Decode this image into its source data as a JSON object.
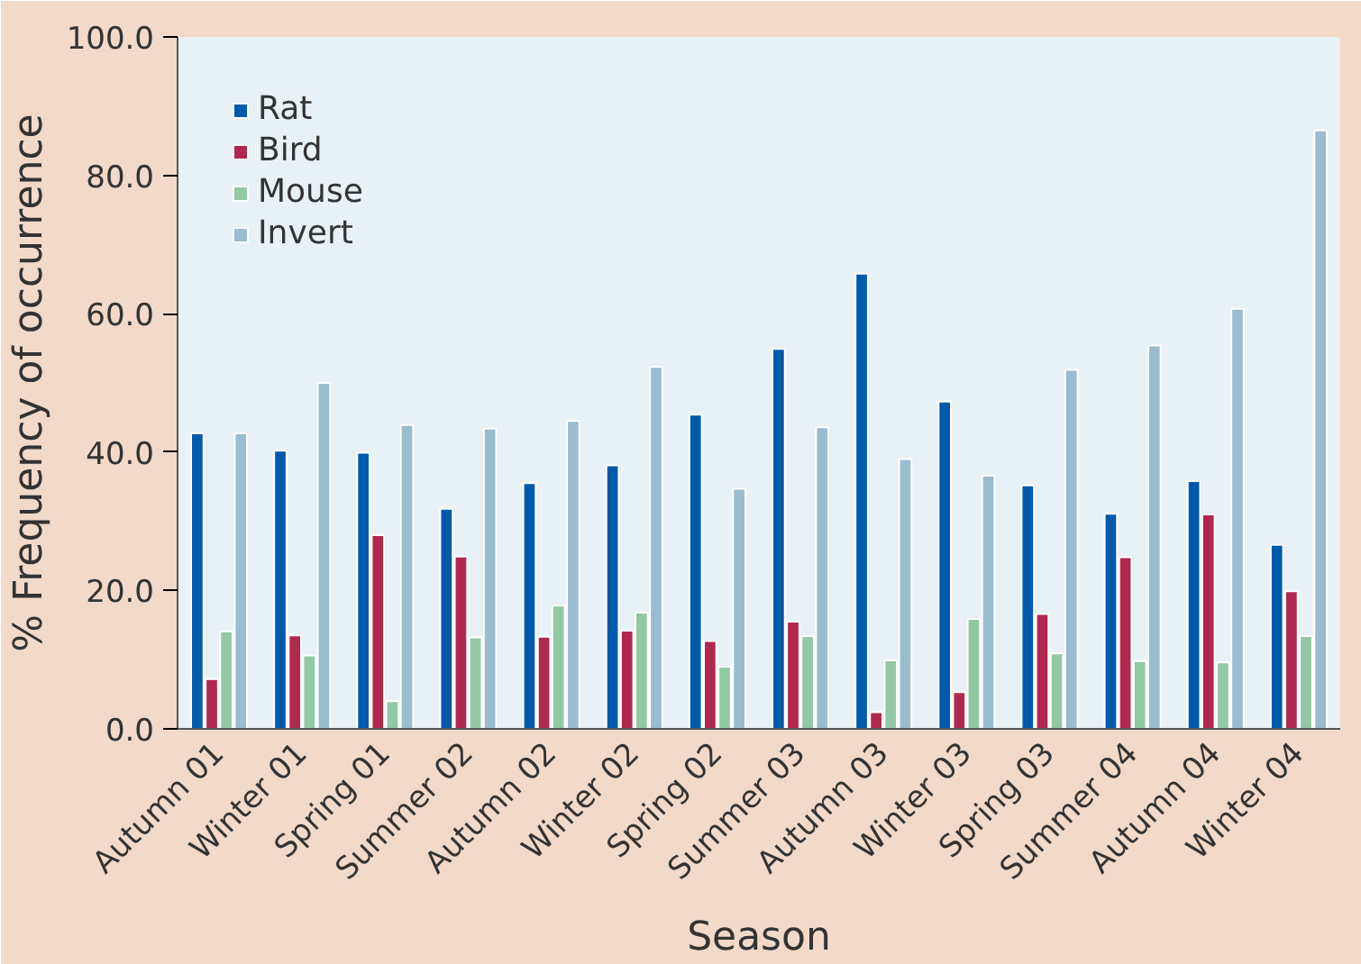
{
  "chart_data": {
    "type": "bar",
    "xlabel": "Season",
    "ylabel": "% Frequency of occurrence",
    "categories": [
      "Autumn 01",
      "Winter 01",
      "Spring 01",
      "Summer 02",
      "Autumn 02",
      "Winter 02",
      "Spring 02",
      "Summer 03",
      "Autumn 03",
      "Winter 03",
      "Spring 03",
      "Summer 04",
      "Autumn 04",
      "Winter 04"
    ],
    "series": [
      {
        "name": "Rat",
        "color": "#005aab",
        "values": [
          42.7,
          40.2,
          39.9,
          31.8,
          35.5,
          38.1,
          45.4,
          54.9,
          65.8,
          47.3,
          35.2,
          31.1,
          35.8,
          26.6
        ]
      },
      {
        "name": "Bird",
        "color": "#b0284f",
        "values": [
          7.2,
          13.5,
          28.0,
          24.9,
          13.3,
          14.2,
          12.7,
          15.5,
          2.4,
          5.3,
          16.6,
          24.8,
          31.0,
          19.9
        ]
      },
      {
        "name": "Mouse",
        "color": "#93c8a4",
        "values": [
          14.1,
          10.6,
          4.0,
          13.2,
          17.8,
          16.8,
          9.0,
          13.4,
          9.9,
          15.9,
          10.9,
          9.8,
          9.6,
          13.4
        ]
      },
      {
        "name": "Invert",
        "color": "#9abccf",
        "values": [
          42.7,
          50.0,
          43.9,
          43.4,
          44.5,
          52.3,
          34.7,
          43.6,
          39.0,
          36.6,
          51.9,
          55.4,
          60.7,
          86.5
        ]
      }
    ],
    "ylim": [
      0,
      100
    ],
    "yticks": [
      {
        "value": 0,
        "label": "0.0"
      },
      {
        "value": 20,
        "label": "20.0"
      },
      {
        "value": 40,
        "label": "40.0"
      },
      {
        "value": 60,
        "label": "60.0"
      },
      {
        "value": 80,
        "label": "80.0"
      },
      {
        "value": 100,
        "label": "100.0"
      }
    ],
    "grid": false,
    "legend": "top left"
  }
}
